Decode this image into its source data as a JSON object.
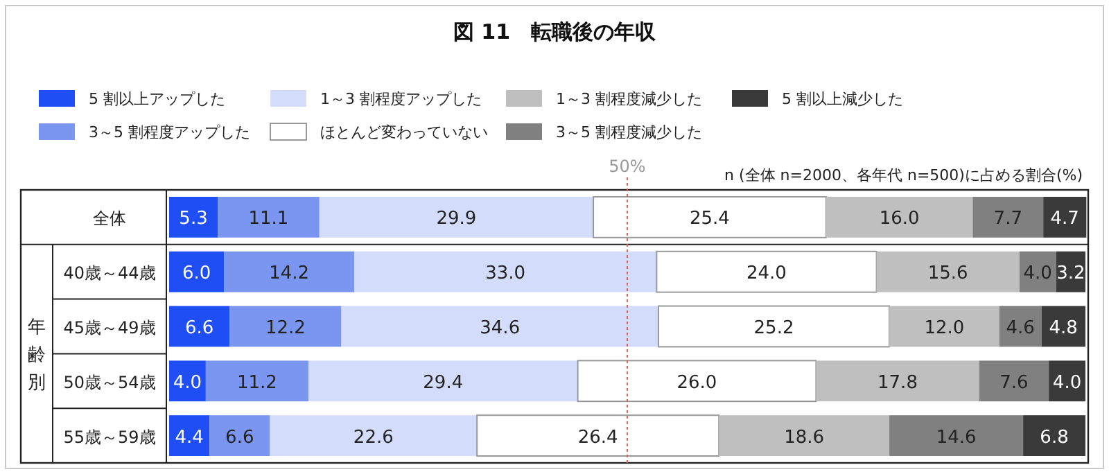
{
  "chart_data": {
    "type": "bar",
    "orientation": "horizontal",
    "stacked": true,
    "title": "図 11　転職後の年収",
    "categories": [
      "全体",
      "40歳～44歳",
      "45歳～49歳",
      "50歳～54歳",
      "55歳～59歳"
    ],
    "series": [
      {
        "name": "5 割以上アップした",
        "color": "#1f4ef5",
        "values": [
          5.3,
          6.0,
          6.6,
          4.0,
          4.4
        ],
        "value_labels": [
          "5.3",
          "6.0",
          "6.6",
          "4.0",
          "4.4"
        ]
      },
      {
        "name": "3～5 割程度アップした",
        "color": "#7b96f0",
        "values": [
          11.1,
          14.2,
          12.2,
          11.2,
          6.6
        ],
        "value_labels": [
          "11.1",
          "14.2",
          "12.2",
          "11.2",
          "6.6"
        ]
      },
      {
        "name": "1～3 割程度アップした",
        "color": "#d4dcfb",
        "values": [
          29.9,
          33.0,
          34.6,
          29.4,
          22.6
        ],
        "value_labels": [
          "29.9",
          "33.0",
          "34.6",
          "29.4",
          "22.6"
        ]
      },
      {
        "name": "ほとんど変わっていない",
        "color": "#ffffff",
        "values": [
          25.4,
          24.0,
          25.2,
          26.0,
          26.4
        ],
        "value_labels": [
          "25.4",
          "24.0",
          "25.2",
          "26.0",
          "26.4"
        ]
      },
      {
        "name": "1～3 割程度減少した",
        "color": "#bfbfbf",
        "values": [
          16.0,
          15.6,
          12.0,
          17.8,
          18.6
        ],
        "value_labels": [
          "16.0",
          "15.6",
          "12.0",
          "17.8",
          "18.6"
        ]
      },
      {
        "name": "3～5 割程度減少した",
        "color": "#808080",
        "values": [
          7.7,
          4.0,
          4.6,
          7.6,
          14.6
        ],
        "value_labels": [
          "7.7",
          "4.0",
          "4.6",
          "7.6",
          "14.6"
        ]
      },
      {
        "name": "5 割以上減少した",
        "color": "#3a3a3a",
        "values": [
          4.7,
          3.2,
          4.8,
          4.0,
          6.8
        ],
        "value_labels": [
          "4.7",
          "3.2",
          "4.8",
          "4.0",
          "6.8"
        ]
      }
    ],
    "xlim": [
      0,
      100
    ],
    "ref_lines": [
      {
        "axis": "x",
        "value": 50,
        "label": "50%",
        "color": "#e06060",
        "line_style": "dotted"
      }
    ],
    "annotations": [
      "n (全体 n=2000、各年代 n=500)に占める割合(%)",
      "年齢別"
    ],
    "legend": "top"
  }
}
